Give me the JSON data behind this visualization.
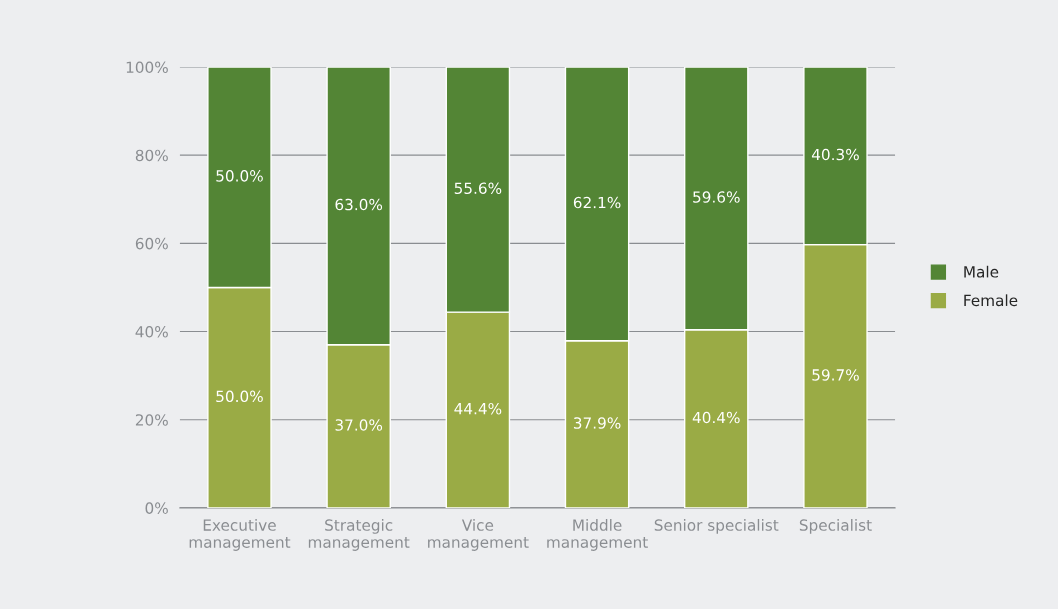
{
  "chart_data": {
    "type": "bar",
    "stacked": true,
    "categories": [
      "Executive\nmanagement",
      "Strategic\nmanagement",
      "Vice\nmanagement",
      "Middle\nmanagement",
      "Senior specialist",
      "Specialist"
    ],
    "series": [
      {
        "name": "Female",
        "color": "#9aab45",
        "values": [
          50.0,
          37.0,
          44.4,
          37.9,
          40.4,
          59.7
        ],
        "value_labels": [
          "50.0%",
          "37.0%",
          "44.4%",
          "37.9%",
          "40.4%",
          "59.7%"
        ]
      },
      {
        "name": "Male",
        "color": "#538535",
        "values": [
          50.0,
          63.0,
          55.6,
          62.1,
          59.6,
          40.3
        ],
        "value_labels": [
          "50.0%",
          "63.0%",
          "55.6%",
          "62.1%",
          "59.6%",
          "40.3%"
        ]
      }
    ],
    "ylim": [
      0,
      100
    ],
    "yticks": [
      {
        "value": 0,
        "label": "0%"
      },
      {
        "value": 20,
        "label": "20%"
      },
      {
        "value": 40,
        "label": "40%"
      },
      {
        "value": 60,
        "label": "60%"
      },
      {
        "value": 80,
        "label": "80%"
      },
      {
        "value": 100,
        "label": "100%"
      }
    ],
    "grid": "y",
    "legend": "right"
  }
}
